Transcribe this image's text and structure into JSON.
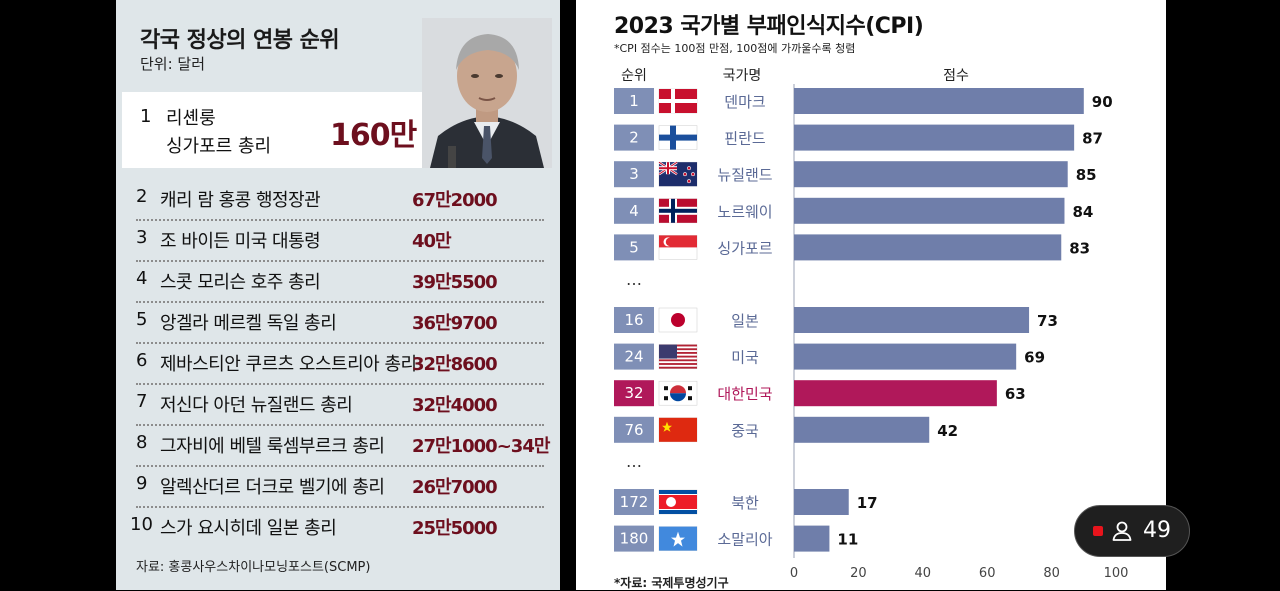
{
  "left_panel": {
    "title": "각국 정상의 연봉 순위",
    "unit": "단위: 달러",
    "top": {
      "rank": "1",
      "name_line1": "리셴룽",
      "name_line2": "싱가포르 총리",
      "salary": "160만"
    },
    "rows": [
      {
        "rank": "2",
        "name": "캐리 람 홍콩 행정장관",
        "salary": "67만2000"
      },
      {
        "rank": "3",
        "name": "조 바이든 미국 대통령",
        "salary": "40만"
      },
      {
        "rank": "4",
        "name": "스콧 모리슨 호주 총리",
        "salary": "39만5500"
      },
      {
        "rank": "5",
        "name": "앙겔라 메르켈 독일 총리",
        "salary": "36만9700"
      },
      {
        "rank": "6",
        "name": "제바스티안 쿠르츠 오스트리아 총리",
        "salary": "32만8600"
      },
      {
        "rank": "7",
        "name": "저신다 아던 뉴질랜드 총리",
        "salary": "32만4000"
      },
      {
        "rank": "8",
        "name": "그자비에 베텔 룩셈부르크 총리",
        "salary": "27만1000~34만"
      },
      {
        "rank": "9",
        "name": "알렉산더르 더크로 벨기에 총리",
        "salary": "26만7000"
      },
      {
        "rank": "10",
        "name": "스가 요시히데 일본 총리",
        "salary": "25만5000"
      }
    ],
    "source": "자료: 홍콩사우스차이나모닝포스트(SCMP)"
  },
  "right_panel": {
    "title": "2023 국가별 부패인식지수(CPI)",
    "note": "*CPI 점수는 100점 만점, 100점에 가까울수록 청렴",
    "source": "*자료: 국제투명성기구"
  },
  "chart_data": {
    "type": "bar",
    "orientation": "horizontal",
    "title": "2023 국가별 부패인식지수(CPI)",
    "column_headers": {
      "rank": "순위",
      "country": "국가명",
      "score": "점수"
    },
    "gap_marker": "…",
    "xlim": [
      0,
      100
    ],
    "xticks": [
      0,
      20,
      40,
      60,
      80,
      100
    ],
    "groups": [
      [
        {
          "rank": "1",
          "country": "덴마크",
          "flag": "denmark-flag",
          "value": 90
        },
        {
          "rank": "2",
          "country": "핀란드",
          "flag": "finland-flag",
          "value": 87
        },
        {
          "rank": "3",
          "country": "뉴질랜드",
          "flag": "new-zealand-flag",
          "value": 85
        },
        {
          "rank": "4",
          "country": "노르웨이",
          "flag": "norway-flag",
          "value": 84
        },
        {
          "rank": "5",
          "country": "싱가포르",
          "flag": "singapore-flag",
          "value": 83
        }
      ],
      [
        {
          "rank": "16",
          "country": "일본",
          "flag": "japan-flag",
          "value": 73
        },
        {
          "rank": "24",
          "country": "미국",
          "flag": "usa-flag",
          "value": 69
        },
        {
          "rank": "32",
          "country": "대한민국",
          "flag": "korea-flag",
          "value": 63,
          "highlight": true
        },
        {
          "rank": "76",
          "country": "중국",
          "flag": "china-flag",
          "value": 42
        }
      ],
      [
        {
          "rank": "172",
          "country": "북한",
          "flag": "north-korea-flag",
          "value": 17
        },
        {
          "rank": "180",
          "country": "소말리아",
          "flag": "somalia-flag",
          "value": 11
        }
      ]
    ],
    "colors": {
      "bar": "#6f7eaa",
      "highlight": "#b0185a",
      "rank_box": "#7f8fb6",
      "highlight_text": "#b0185a",
      "country_text": "#5b6a96"
    }
  },
  "live_badge": {
    "viewer_count": "49",
    "live_color": "#e8141c"
  }
}
